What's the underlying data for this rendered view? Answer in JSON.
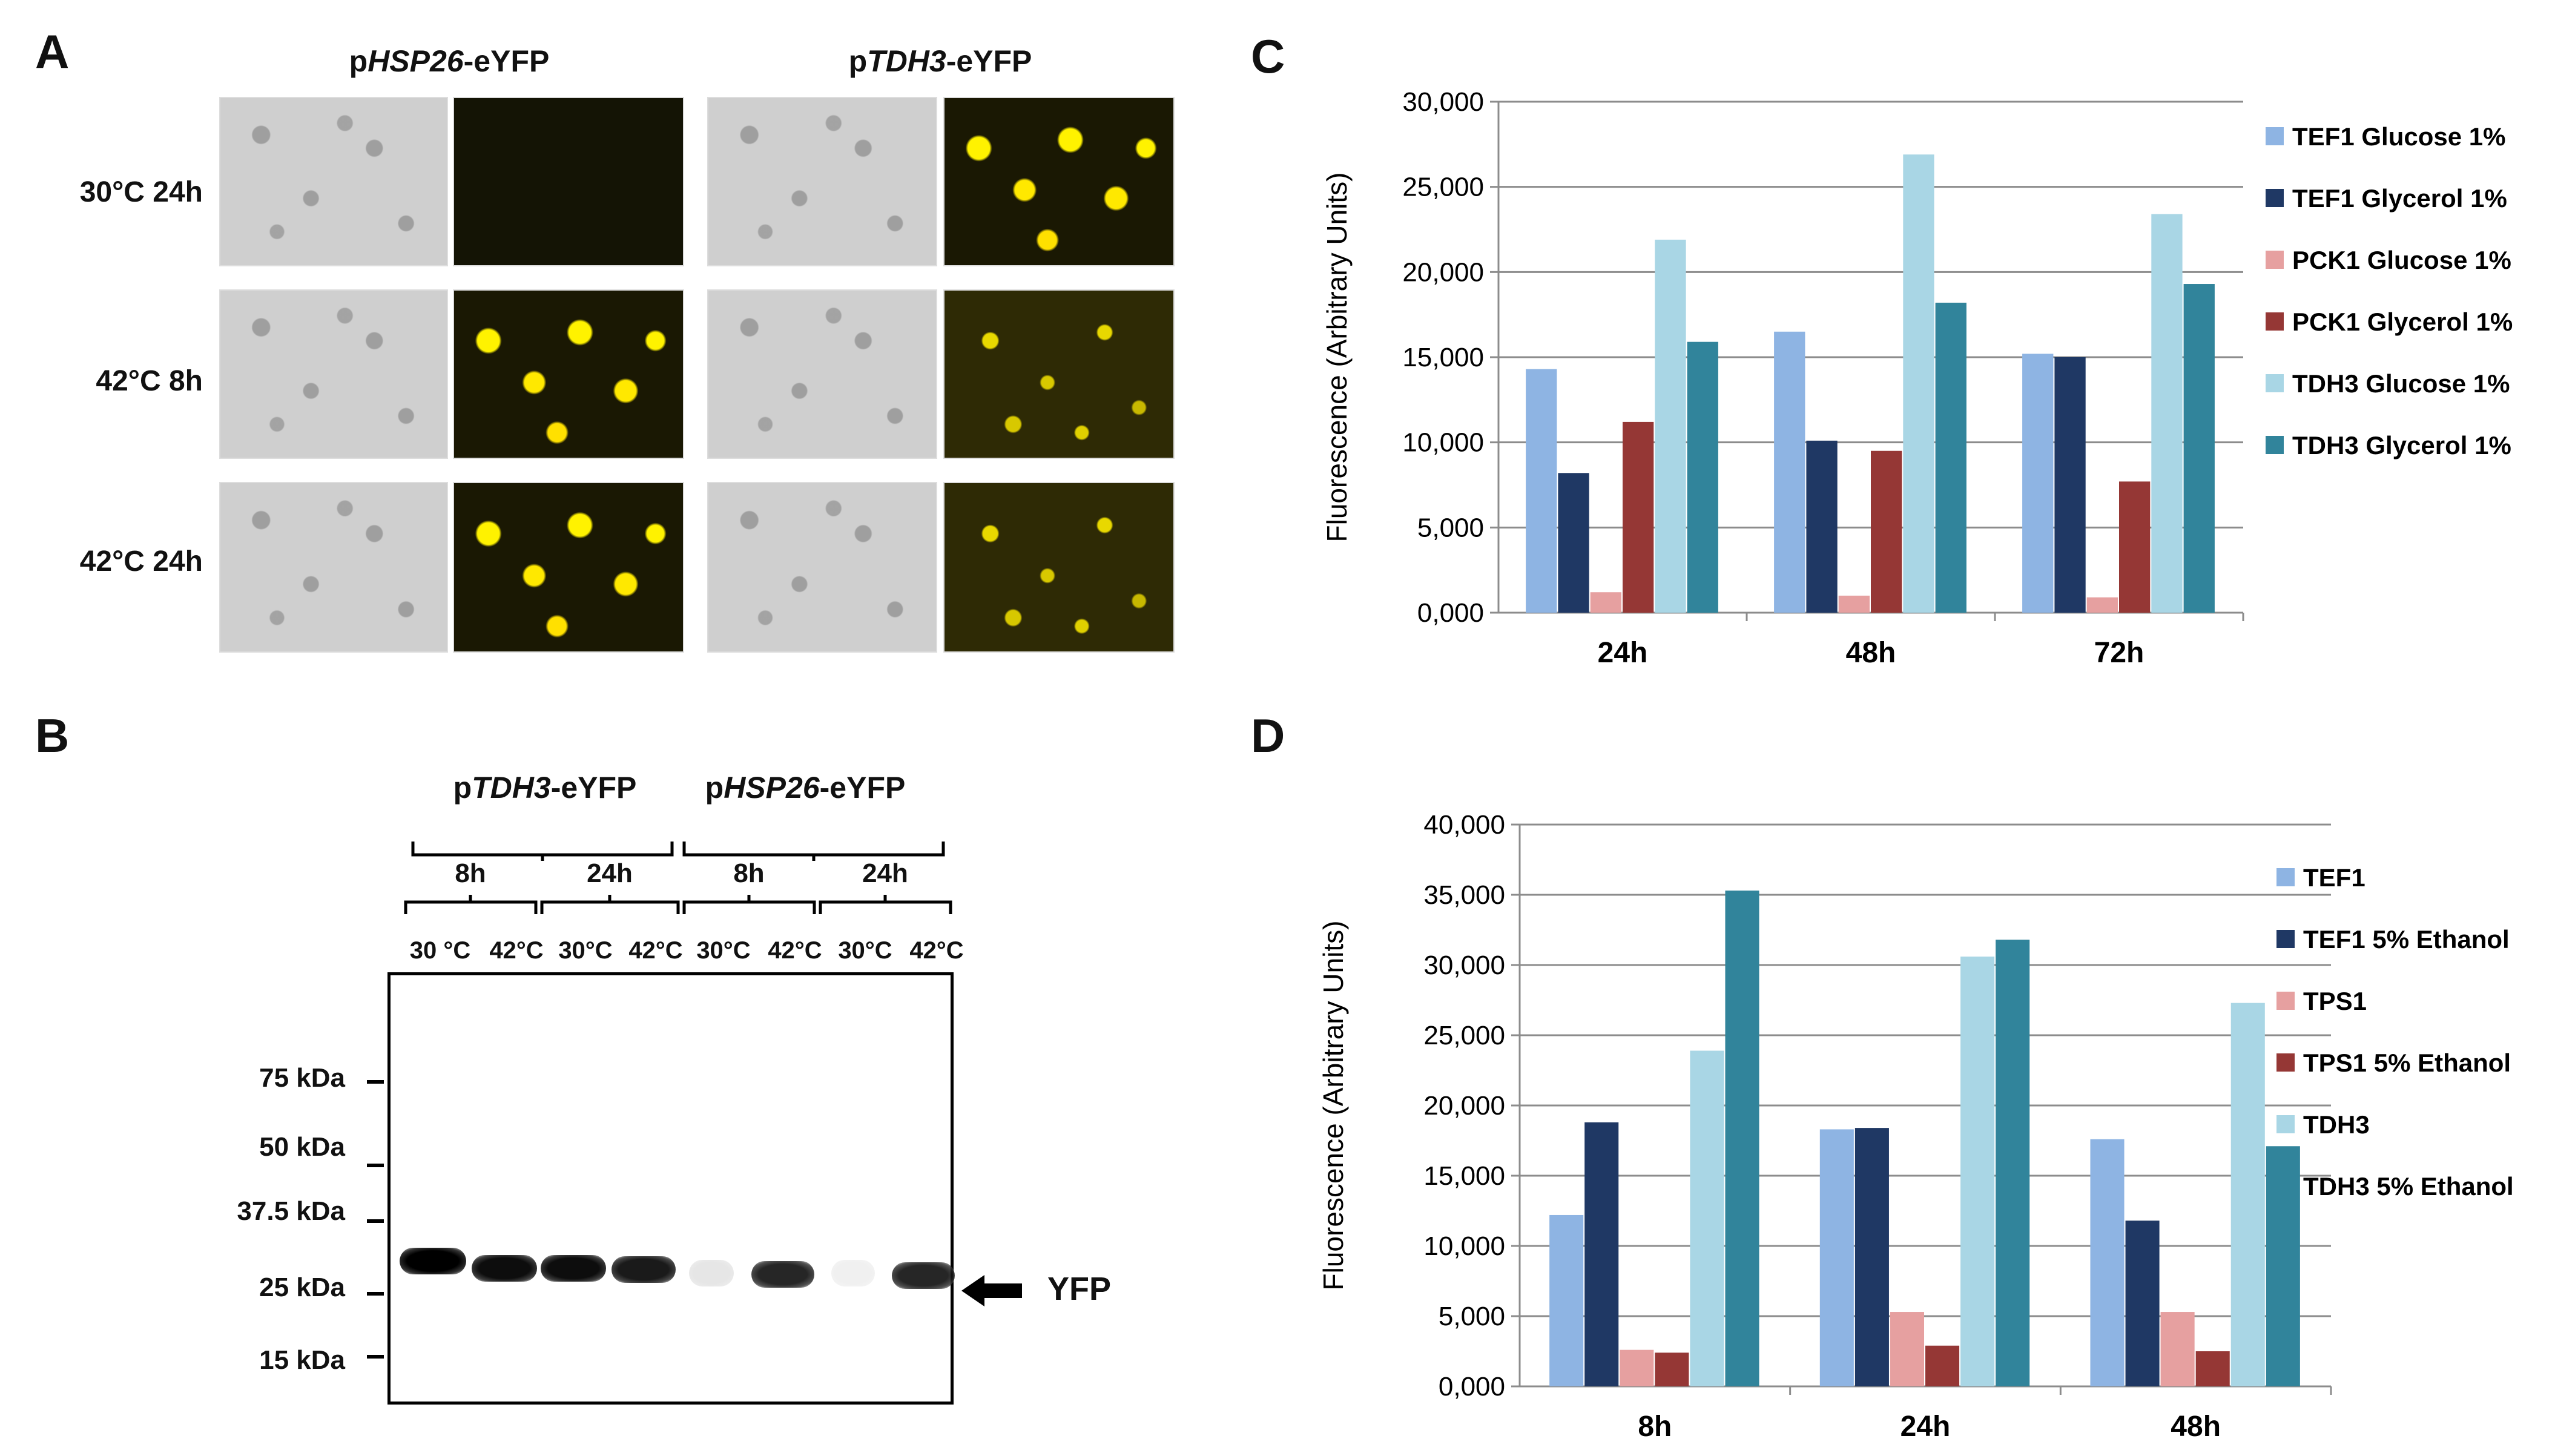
{
  "panelA": {
    "letter": "A",
    "headers": [
      {
        "prefix": "p",
        "gene": "HSP26",
        "suffix": "-eYFP"
      },
      {
        "prefix": "p",
        "gene": "TDH3",
        "suffix": "-eYFP"
      }
    ],
    "rows": [
      "30°C 24h",
      "42°C 8h",
      "42°C 24h"
    ]
  },
  "panelB": {
    "letter": "B",
    "groups": [
      {
        "prefix": "p",
        "gene": "TDH3",
        "suffix": "-eYFP"
      },
      {
        "prefix": "p",
        "gene": "HSP26",
        "suffix": "-eYFP"
      }
    ],
    "timepoints": [
      "8h",
      "24h",
      "8h",
      "24h"
    ],
    "lanes": [
      "30 °C",
      "42°C",
      "30°C",
      "42°C",
      "30°C",
      "42°C",
      "30°C",
      "42°C"
    ],
    "markers": [
      "75 kDa",
      "50 kDa",
      "37.5 kDa",
      "25 kDa",
      "15 kDa"
    ],
    "band_label": "YFP",
    "band_intensity": [
      1.0,
      0.95,
      0.95,
      0.9,
      0.1,
      0.85,
      0.05,
      0.85
    ]
  },
  "colors": [
    "#8eb4e3",
    "#1f3864",
    "#e6a0a0",
    "#953735",
    "#a9d6e5",
    "#31849b"
  ],
  "chart_data": [
    {
      "letter": "C",
      "type": "bar",
      "categories": [
        "24h",
        "48h",
        "72h"
      ],
      "ylabel": "Fluorescence (Arbitrary Units)",
      "ylim": [
        0,
        30000
      ],
      "yticks": [
        "0,000",
        "5,000",
        "10,000",
        "15,000",
        "20,000",
        "25,000",
        "30,000"
      ],
      "series": [
        {
          "name": "TEF1 Glucose 1%",
          "values": [
            14300,
            16500,
            15200
          ]
        },
        {
          "name": "TEF1 Glycerol 1%",
          "values": [
            8200,
            10100,
            15000
          ]
        },
        {
          "name": "PCK1 Glucose 1%",
          "values": [
            1200,
            1000,
            900
          ]
        },
        {
          "name": "PCK1 Glycerol 1%",
          "values": [
            11200,
            9500,
            7700
          ]
        },
        {
          "name": "TDH3 Glucose 1%",
          "values": [
            21900,
            26900,
            23400
          ]
        },
        {
          "name": "TDH3 Glycerol 1%",
          "values": [
            15900,
            18200,
            19300
          ]
        }
      ]
    },
    {
      "letter": "D",
      "type": "bar",
      "categories": [
        "8h",
        "24h",
        "48h"
      ],
      "ylabel": "Fluorescence (Arbitrary Units)",
      "ylim": [
        0,
        40000
      ],
      "yticks": [
        "0,000",
        "5,000",
        "10,000",
        "15,000",
        "20,000",
        "25,000",
        "30,000",
        "35,000",
        "40,000"
      ],
      "series": [
        {
          "name": "TEF1",
          "values": [
            12200,
            18300,
            17600
          ]
        },
        {
          "name": "TEF1 5% Ethanol",
          "values": [
            18800,
            18400,
            11800
          ]
        },
        {
          "name": "TPS1",
          "values": [
            2600,
            5300,
            5300
          ]
        },
        {
          "name": "TPS1 5% Ethanol",
          "values": [
            2400,
            2900,
            2500
          ]
        },
        {
          "name": "TDH3",
          "values": [
            23900,
            30600,
            27300
          ]
        },
        {
          "name": "TDH3 5% Ethanol",
          "values": [
            35300,
            31800,
            17100
          ]
        }
      ]
    }
  ]
}
